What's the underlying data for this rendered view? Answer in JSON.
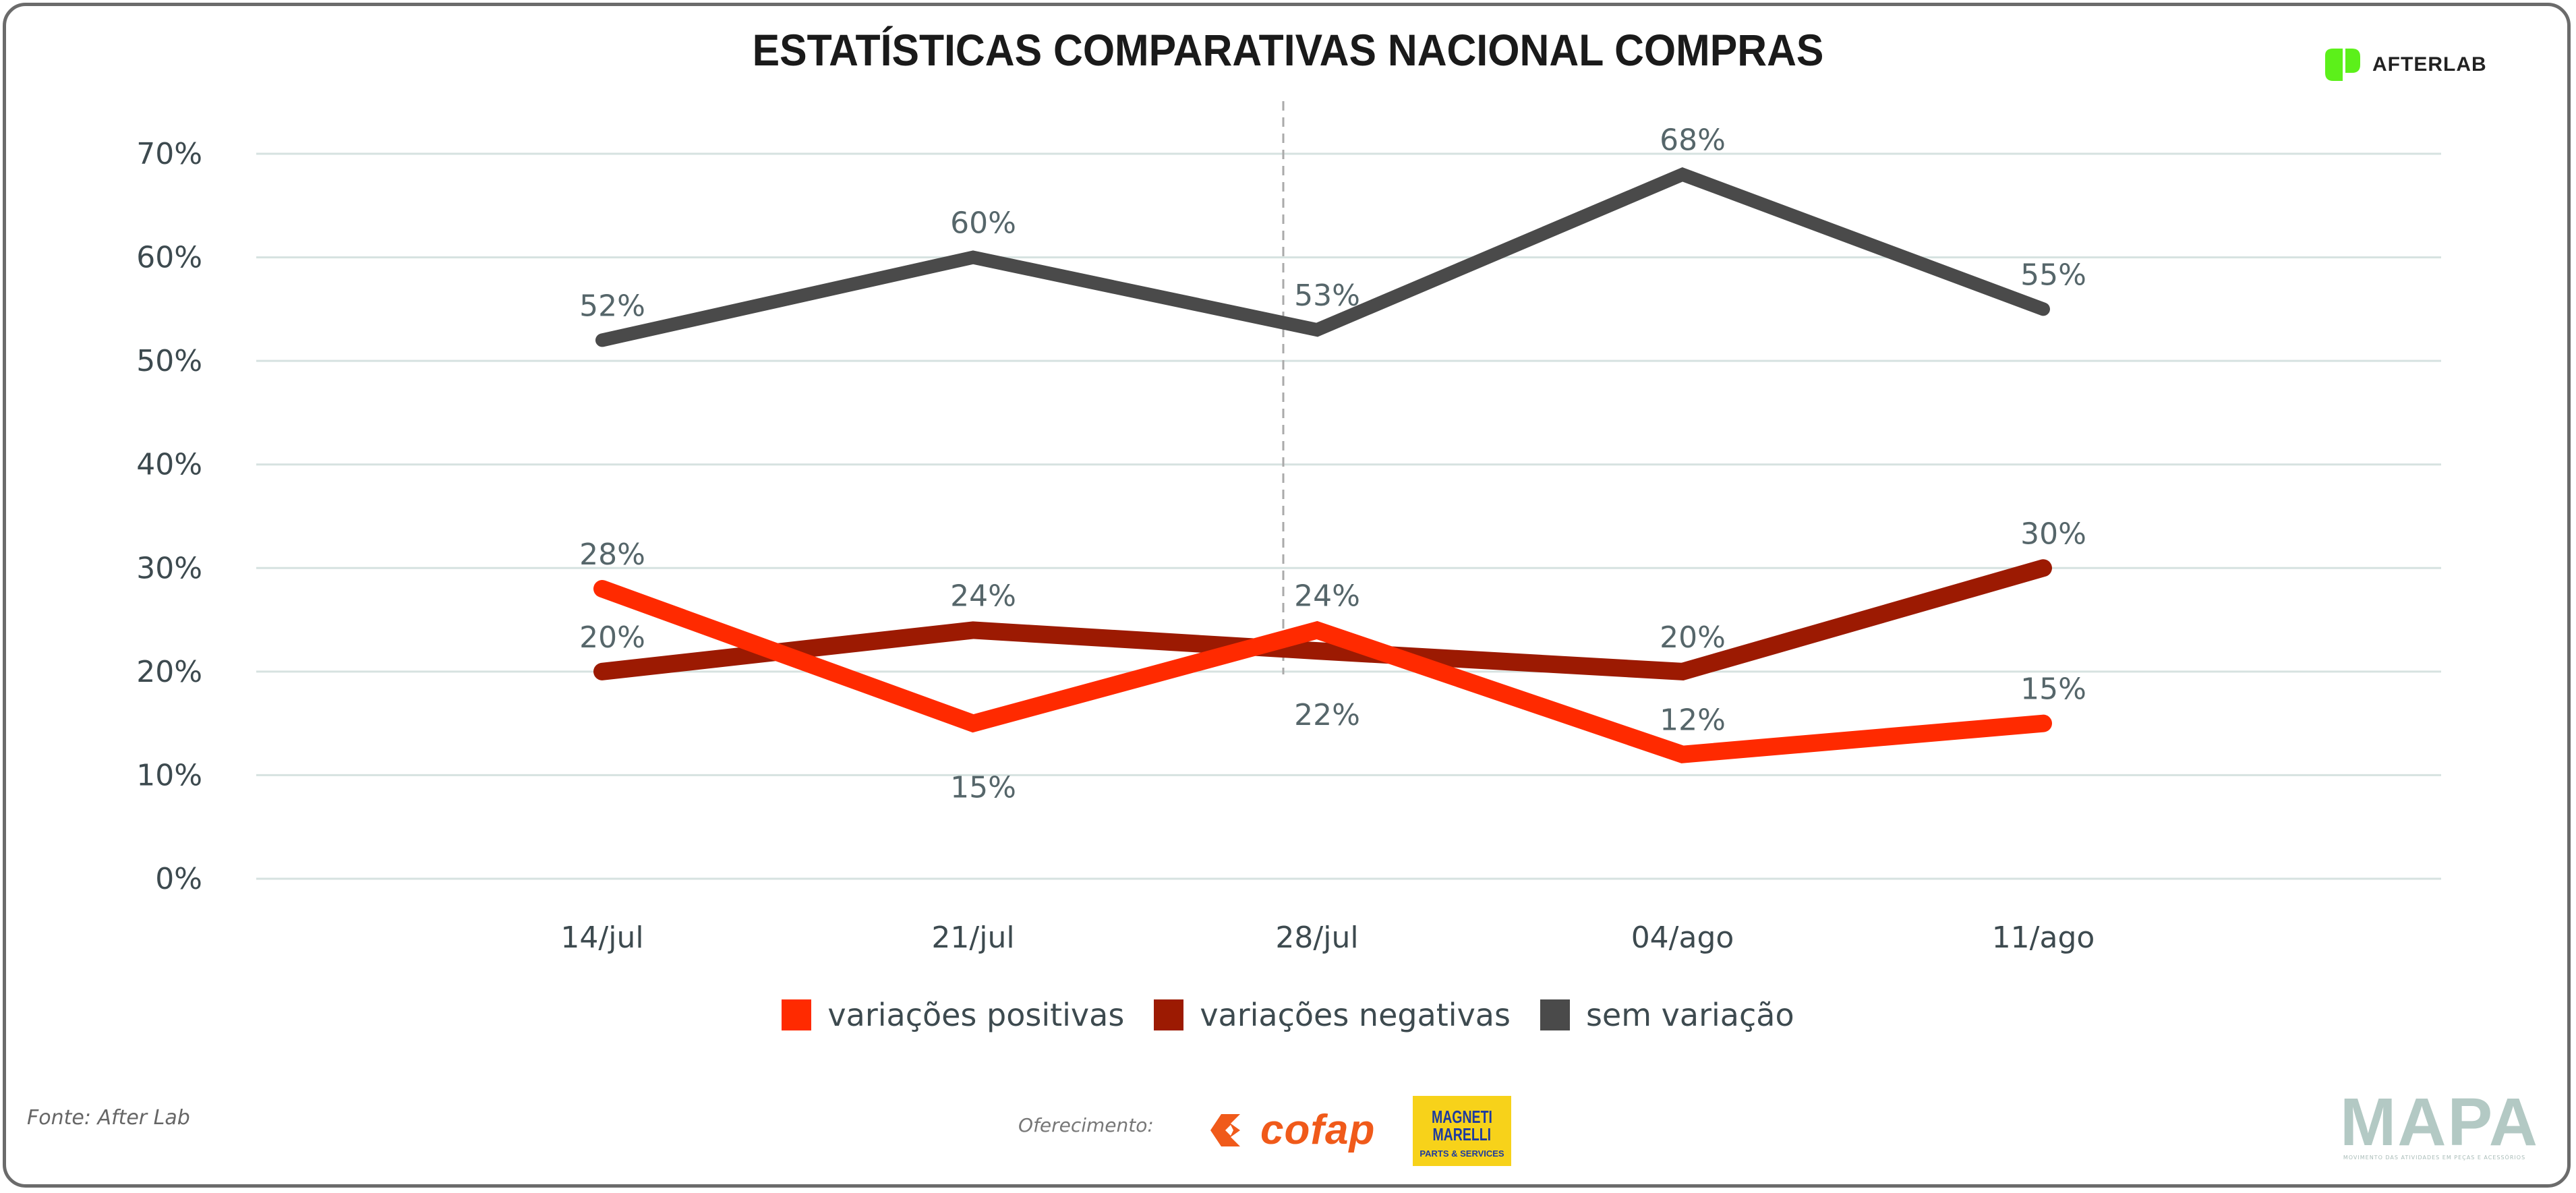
{
  "header": {
    "title": "ESTATÍSTICAS COMPARATIVAS NACIONAL COMPRAS",
    "brand_logo": "AFTERLAB",
    "brand_color": "#5cf01a"
  },
  "chart_data": {
    "type": "line",
    "title": "ESTATÍSTICAS COMPARATIVAS NACIONAL COMPRAS",
    "xlabel": "",
    "ylabel": "",
    "categories": [
      "14/jul",
      "21/jul",
      "28/jul",
      "04/ago",
      "11/ago"
    ],
    "yticks": [
      "0%",
      "10%",
      "20%",
      "30%",
      "40%",
      "50%",
      "60%",
      "70%"
    ],
    "ylim": [
      0,
      70
    ],
    "grid": true,
    "legend_position": "bottom-center",
    "series": [
      {
        "name": "variações positivas",
        "color": "#ff2a00",
        "values": [
          28,
          15,
          24,
          12,
          15
        ],
        "labels": [
          "28%",
          "15%",
          "24%",
          "12%",
          "15%"
        ]
      },
      {
        "name": "variações negativas",
        "color": "#9c1a02",
        "values": [
          20,
          24,
          22,
          20,
          30
        ],
        "labels": [
          "20%",
          "24%",
          "22%",
          "20%",
          "30%"
        ]
      },
      {
        "name": "sem variação",
        "color": "#4a4a4a",
        "values": [
          52,
          60,
          53,
          68,
          55
        ],
        "labels": [
          "52%",
          "60%",
          "53%",
          "68%",
          "55%"
        ]
      }
    ]
  },
  "footer": {
    "source": "Fonte: After Lab",
    "offered_by": "Oferecimento:",
    "sponsor_1": "cofap",
    "sponsor_2_line1": "MAGNETI",
    "sponsor_2_line2": "MARELLI",
    "sponsor_2_tagline": "PARTS & SERVICES",
    "mapa_logo": "MAPA",
    "mapa_tagline": "MOVIMENTO DAS ATIVIDADES EM PEÇAS E ACESSÓRIOS"
  }
}
